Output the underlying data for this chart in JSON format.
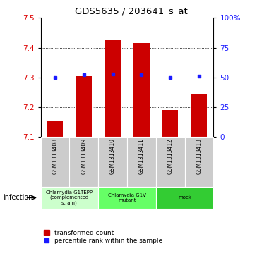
{
  "title": "GDS5635 / 203641_s_at",
  "samples": [
    "GSM1313408",
    "GSM1313409",
    "GSM1313410",
    "GSM1313411",
    "GSM1313412",
    "GSM1313413"
  ],
  "transformed_counts": [
    7.155,
    7.305,
    7.425,
    7.415,
    7.19,
    7.245
  ],
  "percentile_ranks": [
    50,
    52,
    53,
    52,
    50,
    51
  ],
  "ylim_left": [
    7.1,
    7.5
  ],
  "ylim_right": [
    0,
    100
  ],
  "yticks_left": [
    7.1,
    7.2,
    7.3,
    7.4,
    7.5
  ],
  "yticks_right": [
    0,
    25,
    50,
    75,
    100
  ],
  "bar_color": "#cc0000",
  "dot_color": "#1a1aff",
  "bar_bottom": 7.1,
  "groups": [
    {
      "label": "Chlamydia G1TEPP\n(complemented\nstrain)",
      "start": 0,
      "end": 2,
      "color": "#ccffcc"
    },
    {
      "label": "Chlamydia G1V\nmutant",
      "start": 2,
      "end": 4,
      "color": "#66ff66"
    },
    {
      "label": "mock",
      "start": 4,
      "end": 6,
      "color": "#33cc33"
    }
  ],
  "factor_label": "infection",
  "legend_bar_label": "transformed count",
  "legend_dot_label": "percentile rank within the sample",
  "tick_label_color_left": "#dd0000",
  "tick_label_color_right": "#1a1aff",
  "sample_box_color": "#cccccc"
}
